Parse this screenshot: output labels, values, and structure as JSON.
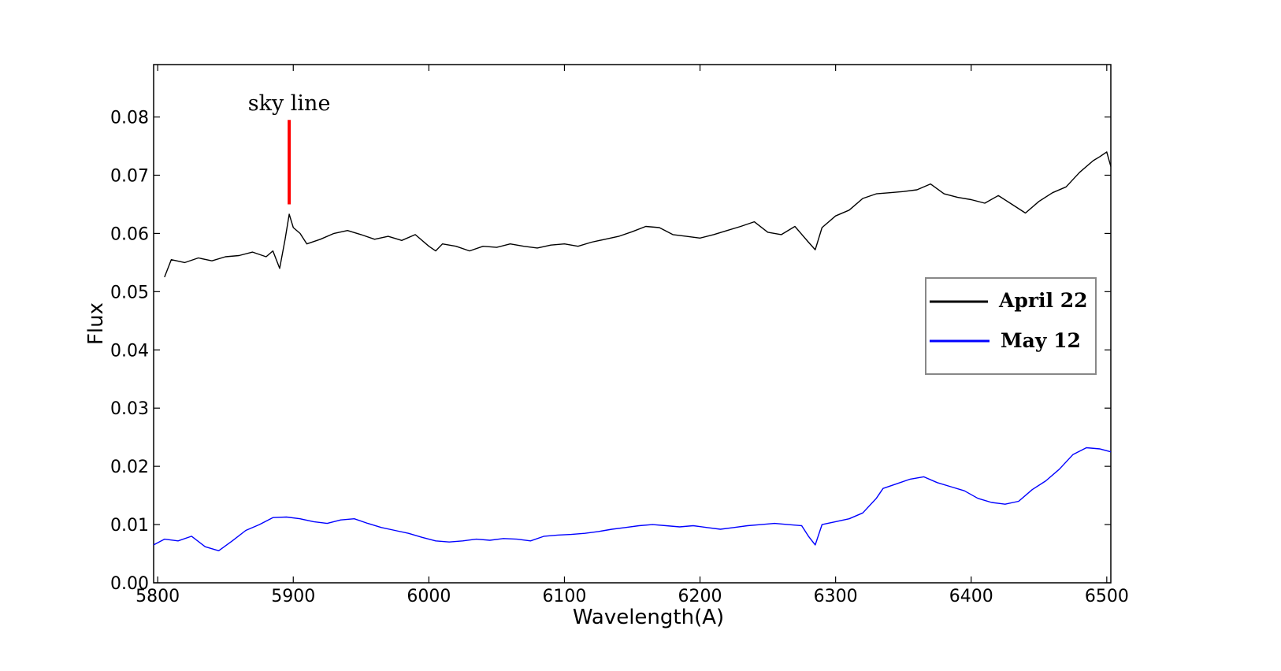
{
  "chart_data": {
    "type": "line",
    "title": "",
    "xlabel": "Wavelength(A)",
    "ylabel": "Flux",
    "xlim": [
      5797,
      6503
    ],
    "ylim": [
      0.0,
      0.089
    ],
    "grid": false,
    "legend_position": "right",
    "x_ticks": [
      5800,
      5900,
      6000,
      6100,
      6200,
      6300,
      6400,
      6500
    ],
    "x_tick_labels": [
      "5800",
      "5900",
      "6000",
      "6100",
      "6200",
      "6300",
      "6400",
      "6500"
    ],
    "y_ticks": [
      0.0,
      0.01,
      0.02,
      0.03,
      0.04,
      0.05,
      0.06,
      0.07,
      0.08
    ],
    "y_tick_labels": [
      "0.00",
      "0.01",
      "0.02",
      "0.03",
      "0.04",
      "0.05",
      "0.06",
      "0.07",
      "0.08"
    ],
    "series": [
      {
        "name": "April 22",
        "color": "#000000",
        "x": [
          5805,
          5810,
          5820,
          5830,
          5840,
          5850,
          5860,
          5870,
          5880,
          5885,
          5890,
          5894,
          5897,
          5900,
          5905,
          5910,
          5920,
          5930,
          5940,
          5950,
          5960,
          5970,
          5980,
          5990,
          6000,
          6005,
          6010,
          6020,
          6030,
          6040,
          6050,
          6060,
          6070,
          6080,
          6090,
          6100,
          6110,
          6120,
          6130,
          6140,
          6150,
          6160,
          6170,
          6180,
          6190,
          6200,
          6210,
          6220,
          6230,
          6240,
          6250,
          6260,
          6270,
          6280,
          6285,
          6290,
          6300,
          6310,
          6320,
          6330,
          6340,
          6350,
          6360,
          6370,
          6380,
          6390,
          6400,
          6410,
          6420,
          6430,
          6440,
          6450,
          6460,
          6470,
          6480,
          6490,
          6495,
          6500,
          6503
        ],
        "y": [
          0.0525,
          0.0555,
          0.055,
          0.0558,
          0.0553,
          0.056,
          0.0562,
          0.0568,
          0.056,
          0.057,
          0.054,
          0.059,
          0.0633,
          0.061,
          0.06,
          0.0582,
          0.059,
          0.06,
          0.0605,
          0.0598,
          0.059,
          0.0595,
          0.0588,
          0.0598,
          0.0578,
          0.057,
          0.0582,
          0.0578,
          0.057,
          0.0578,
          0.0576,
          0.0582,
          0.0578,
          0.0575,
          0.058,
          0.0582,
          0.0578,
          0.0585,
          0.059,
          0.0595,
          0.0603,
          0.0612,
          0.061,
          0.0598,
          0.0595,
          0.0592,
          0.0598,
          0.0605,
          0.0612,
          0.062,
          0.0602,
          0.0598,
          0.0612,
          0.0585,
          0.0572,
          0.061,
          0.063,
          0.064,
          0.066,
          0.0668,
          0.067,
          0.0672,
          0.0675,
          0.0685,
          0.0668,
          0.0662,
          0.0658,
          0.0652,
          0.0665,
          0.065,
          0.0635,
          0.0655,
          0.067,
          0.068,
          0.0705,
          0.0725,
          0.0732,
          0.074,
          0.0715
        ]
      },
      {
        "name": "May 12",
        "color": "#0000ff",
        "x": [
          5797,
          5805,
          5815,
          5825,
          5835,
          5845,
          5855,
          5865,
          5875,
          5885,
          5895,
          5905,
          5915,
          5925,
          5935,
          5945,
          5955,
          5965,
          5975,
          5985,
          5995,
          6005,
          6015,
          6025,
          6035,
          6045,
          6055,
          6065,
          6075,
          6085,
          6095,
          6105,
          6115,
          6125,
          6135,
          6145,
          6155,
          6165,
          6175,
          6185,
          6195,
          6205,
          6215,
          6225,
          6235,
          6245,
          6255,
          6265,
          6275,
          6280,
          6285,
          6290,
          6300,
          6310,
          6320,
          6330,
          6335,
          6345,
          6355,
          6365,
          6375,
          6385,
          6395,
          6405,
          6415,
          6425,
          6435,
          6445,
          6455,
          6465,
          6475,
          6485,
          6495,
          6503
        ],
        "y": [
          0.0065,
          0.0075,
          0.0072,
          0.008,
          0.0062,
          0.0055,
          0.0072,
          0.009,
          0.01,
          0.0112,
          0.0113,
          0.011,
          0.0105,
          0.0102,
          0.0108,
          0.011,
          0.0102,
          0.0095,
          0.009,
          0.0085,
          0.0078,
          0.0072,
          0.007,
          0.0072,
          0.0075,
          0.0073,
          0.0076,
          0.0075,
          0.0072,
          0.008,
          0.0082,
          0.0083,
          0.0085,
          0.0088,
          0.0092,
          0.0095,
          0.0098,
          0.01,
          0.0098,
          0.0096,
          0.0098,
          0.0095,
          0.0092,
          0.0095,
          0.0098,
          0.01,
          0.0102,
          0.01,
          0.0098,
          0.008,
          0.0065,
          0.01,
          0.0105,
          0.011,
          0.012,
          0.0145,
          0.0162,
          0.017,
          0.0178,
          0.0182,
          0.0172,
          0.0165,
          0.0158,
          0.0145,
          0.0138,
          0.0135,
          0.014,
          0.016,
          0.0175,
          0.0195,
          0.022,
          0.0232,
          0.023,
          0.0225
        ]
      }
    ],
    "annotations": [
      {
        "text": "sky  line",
        "x": 5897,
        "line_y_from": 0.065,
        "line_y_to": 0.0795,
        "color": "#ff0000"
      }
    ]
  }
}
